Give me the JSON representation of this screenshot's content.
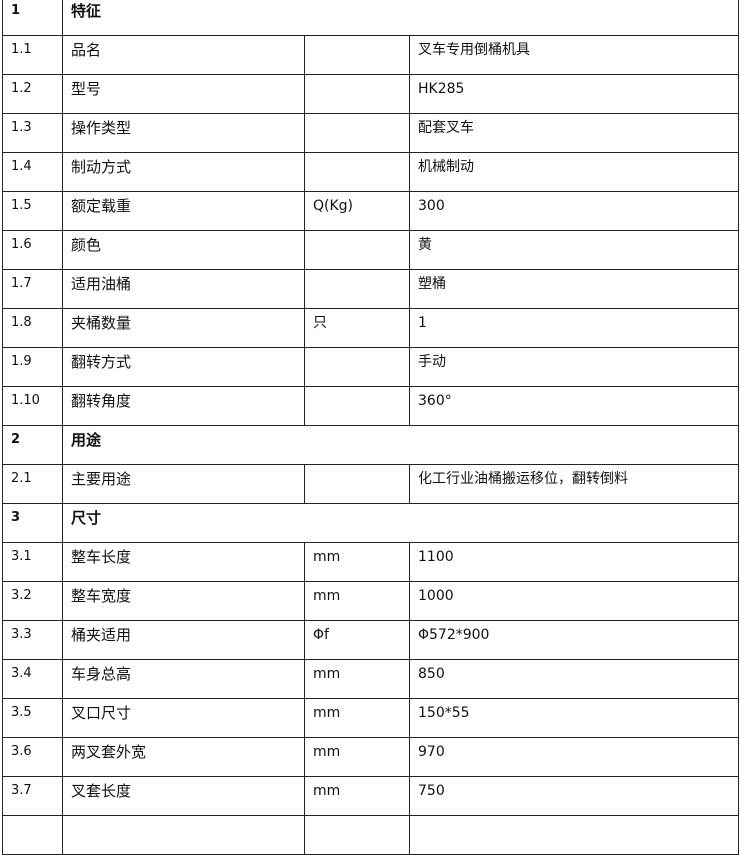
{
  "table": {
    "rows": [
      [
        "1",
        "特征"
      ],
      [
        "1.1",
        "品名",
        "",
        "叉车专用倒桶机具"
      ],
      [
        "1.2",
        "型号",
        "",
        "HK285"
      ],
      [
        "1.3",
        "操作类型",
        "",
        "配套叉车"
      ],
      [
        "1.4",
        "制动方式",
        "",
        "机械制动"
      ],
      [
        "1.5",
        "额定载重",
        "Q(Kg)",
        "300"
      ],
      [
        "1.6",
        "颜色",
        "",
        "黄"
      ],
      [
        "1.7",
        "适用油桶",
        "",
        "塑桶"
      ],
      [
        "1.8",
        "夹桶数量",
        "只",
        "1"
      ],
      [
        "1.9",
        "翻转方式",
        "",
        "手动"
      ],
      [
        "1.10",
        "翻转角度",
        "",
        "360°"
      ],
      [
        "2",
        "用途"
      ],
      [
        "2.1",
        "主要用途",
        "",
        "化工行业油桶搬运移位，翻转倒料"
      ],
      [
        "3",
        "尺寸"
      ],
      [
        "3.1",
        "整车长度",
        "mm",
        "1100"
      ],
      [
        "3.2",
        "整车宽度",
        "mm",
        "1000"
      ],
      [
        "3.3",
        "桶夹适用",
        "Φf",
        "Φ572*900"
      ],
      [
        "3.4",
        "车身总高",
        "mm",
        "850"
      ],
      [
        "3.5",
        "叉口尺寸",
        "mm",
        "150*55"
      ],
      [
        "3.6",
        "两叉套外宽",
        "mm",
        "970"
      ],
      [
        "3.7",
        "叉套长度",
        "mm",
        "750"
      ]
    ]
  }
}
